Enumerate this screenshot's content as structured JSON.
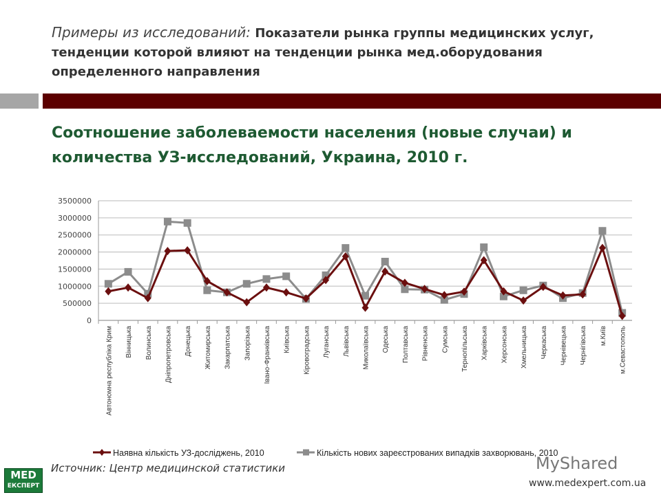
{
  "header": {
    "italic": "Примеры из исследований:",
    "bold": "Показатели рынка группы медицинских услуг, тенденции которой влияют на тенденции рынка мед.оборудования определенного направления"
  },
  "chart_title": "Соотношение заболеваемости населения (новые случаи) и количества УЗ-исследований, Украина, 2010 г.",
  "source": "Источник: Центр медицинской статистики",
  "logo_text": "MED ЕКСПЕРТ",
  "watermark": "MyShared",
  "url": "www.medexpert.com.ua",
  "chart_data": {
    "type": "line",
    "ylim": [
      0,
      3500000
    ],
    "yticks": [
      "0",
      "500000",
      "1000000",
      "1500000",
      "2000000",
      "2500000",
      "3000000",
      "3500000"
    ],
    "grid": true,
    "legend": "bottom",
    "categories": [
      "Автономна республіка Крим",
      "Вінницька",
      "Волинська",
      "Дніпропетровська",
      "Донецька",
      "Житомирська",
      "Закарпатська",
      "Запорізька",
      "Івано-Франківська",
      "Київська",
      "Кіровоградська",
      "Луганська",
      "Львівська",
      "Миколаївська",
      "Одеська",
      "Полтавська",
      "Рівненська",
      "Сумська",
      "Тернопільська",
      "Харківська",
      "Херсонська",
      "Хмельницька",
      "Черкаська",
      "Чернівецька",
      "Чернігівська",
      "м.Київ",
      "м.Севастополь"
    ],
    "series": [
      {
        "name": "Наявна кількість УЗ-досліджень, 2010",
        "color": "#6b0f0f",
        "marker": "diamond",
        "values": [
          850000,
          960000,
          650000,
          2030000,
          2050000,
          1150000,
          820000,
          530000,
          960000,
          820000,
          640000,
          1180000,
          1870000,
          370000,
          1430000,
          1100000,
          920000,
          740000,
          840000,
          1760000,
          850000,
          580000,
          980000,
          730000,
          760000,
          2120000,
          130000
        ]
      },
      {
        "name": "Кількість нових зареєстрованих випадків захворювань, 2010",
        "color": "#8c8c8c",
        "marker": "square",
        "values": [
          1070000,
          1420000,
          780000,
          2890000,
          2850000,
          880000,
          820000,
          1070000,
          1210000,
          1290000,
          630000,
          1320000,
          2120000,
          720000,
          1720000,
          910000,
          900000,
          600000,
          770000,
          2140000,
          700000,
          880000,
          1020000,
          650000,
          800000,
          2620000,
          220000
        ]
      }
    ]
  }
}
